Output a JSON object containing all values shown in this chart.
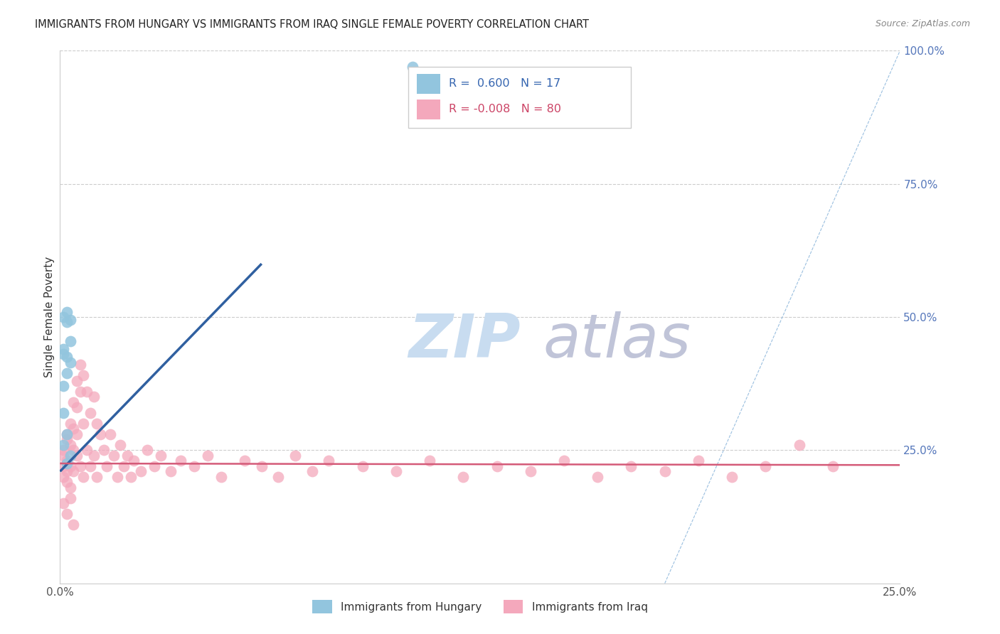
{
  "title": "IMMIGRANTS FROM HUNGARY VS IMMIGRANTS FROM IRAQ SINGLE FEMALE POVERTY CORRELATION CHART",
  "source": "Source: ZipAtlas.com",
  "ylabel": "Single Female Poverty",
  "r_hungary": 0.6,
  "n_hungary": 17,
  "r_iraq": -0.008,
  "n_iraq": 80,
  "legend_label_hungary": "Immigrants from Hungary",
  "legend_label_iraq": "Immigrants from Iraq",
  "hungary_color": "#92c5de",
  "iraq_color": "#f4a8bc",
  "hungary_line_color": "#3060a0",
  "iraq_line_color": "#d45a78",
  "diagonal_color": "#8fb8dc",
  "background_color": "#ffffff",
  "xlim": [
    0.0,
    0.25
  ],
  "ylim": [
    0.0,
    1.0
  ],
  "watermark_text_zip": "ZIP",
  "watermark_text_atlas": "atlas",
  "watermark_color_zip": "#c5dff0",
  "watermark_color_atlas": "#c5c8d8",
  "hungary_x": [
    0.003,
    0.002,
    0.001,
    0.002,
    0.003,
    0.001,
    0.002,
    0.001,
    0.003,
    0.002,
    0.001,
    0.001,
    0.002,
    0.001,
    0.003,
    0.002,
    0.105
  ],
  "hungary_y": [
    0.495,
    0.51,
    0.5,
    0.49,
    0.455,
    0.44,
    0.425,
    0.43,
    0.415,
    0.395,
    0.37,
    0.32,
    0.28,
    0.26,
    0.24,
    0.225,
    0.97
  ],
  "iraq_x": [
    0.001,
    0.001,
    0.001,
    0.001,
    0.002,
    0.002,
    0.002,
    0.002,
    0.002,
    0.003,
    0.003,
    0.003,
    0.003,
    0.004,
    0.004,
    0.004,
    0.004,
    0.005,
    0.005,
    0.005,
    0.005,
    0.006,
    0.006,
    0.006,
    0.007,
    0.007,
    0.007,
    0.008,
    0.008,
    0.009,
    0.009,
    0.01,
    0.01,
    0.011,
    0.011,
    0.012,
    0.013,
    0.014,
    0.015,
    0.016,
    0.017,
    0.018,
    0.019,
    0.02,
    0.021,
    0.022,
    0.024,
    0.026,
    0.028,
    0.03,
    0.033,
    0.036,
    0.04,
    0.044,
    0.048,
    0.055,
    0.06,
    0.065,
    0.07,
    0.075,
    0.08,
    0.09,
    0.1,
    0.11,
    0.12,
    0.13,
    0.14,
    0.15,
    0.16,
    0.17,
    0.18,
    0.19,
    0.2,
    0.21,
    0.22,
    0.23,
    0.001,
    0.002,
    0.003,
    0.004
  ],
  "iraq_y": [
    0.24,
    0.22,
    0.25,
    0.2,
    0.27,
    0.23,
    0.21,
    0.28,
    0.19,
    0.3,
    0.26,
    0.22,
    0.18,
    0.34,
    0.29,
    0.25,
    0.21,
    0.38,
    0.33,
    0.28,
    0.24,
    0.41,
    0.36,
    0.22,
    0.39,
    0.3,
    0.2,
    0.36,
    0.25,
    0.32,
    0.22,
    0.35,
    0.24,
    0.3,
    0.2,
    0.28,
    0.25,
    0.22,
    0.28,
    0.24,
    0.2,
    0.26,
    0.22,
    0.24,
    0.2,
    0.23,
    0.21,
    0.25,
    0.22,
    0.24,
    0.21,
    0.23,
    0.22,
    0.24,
    0.2,
    0.23,
    0.22,
    0.2,
    0.24,
    0.21,
    0.23,
    0.22,
    0.21,
    0.23,
    0.2,
    0.22,
    0.21,
    0.23,
    0.2,
    0.22,
    0.21,
    0.23,
    0.2,
    0.22,
    0.26,
    0.22,
    0.15,
    0.13,
    0.16,
    0.11
  ],
  "hungary_line_x": [
    0.0,
    0.06
  ],
  "hungary_line_y": [
    0.21,
    0.6
  ],
  "iraq_line_x": [
    0.0,
    0.25
  ],
  "iraq_line_y": [
    0.225,
    0.222
  ]
}
